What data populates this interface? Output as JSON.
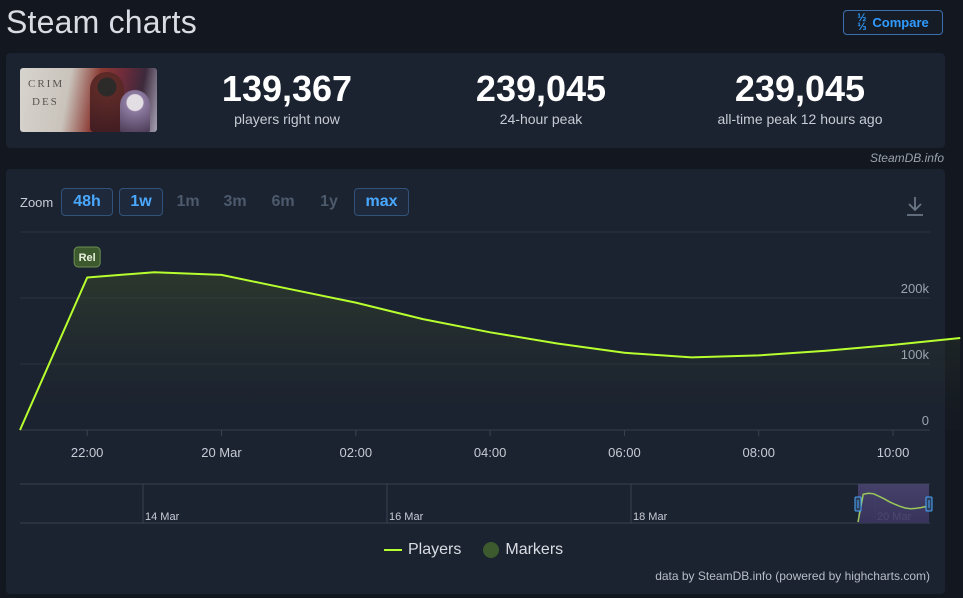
{
  "page": {
    "title": "Steam charts"
  },
  "compare": {
    "label": "Compare",
    "icon": "fraction-icon"
  },
  "game": {
    "title_line1": "CRIM",
    "title_line2": "DES"
  },
  "stats": [
    {
      "value": "139,367",
      "label": "players right now"
    },
    {
      "value": "239,045",
      "label": "24-hour peak"
    },
    {
      "value": "239,045",
      "label": "all-time peak 12 hours ago"
    }
  ],
  "credit_top": "SteamDB.info",
  "zoom": {
    "label": "Zoom",
    "buttons": [
      {
        "label": "48h",
        "state": "active"
      },
      {
        "label": "1w",
        "state": "active"
      },
      {
        "label": "1m",
        "state": "inactive"
      },
      {
        "label": "3m",
        "state": "inactive"
      },
      {
        "label": "6m",
        "state": "inactive"
      },
      {
        "label": "1y",
        "state": "inactive"
      },
      {
        "label": "max",
        "state": "active"
      }
    ]
  },
  "chart_data": {
    "type": "area",
    "x_ticks": [
      "22:00",
      "20 Mar",
      "02:00",
      "04:00",
      "06:00",
      "08:00",
      "10:00"
    ],
    "y_ticks": [
      "0",
      "100k",
      "200k"
    ],
    "ylim": [
      0,
      300000
    ],
    "series": [
      {
        "name": "Players",
        "color": "#b7ff2e",
        "points": [
          {
            "x": "21:00",
            "y": 0
          },
          {
            "x": "22:00",
            "y": 231000
          },
          {
            "x": "23:00",
            "y": 239045
          },
          {
            "x": "20 Mar",
            "y": 235000
          },
          {
            "x": "01:00",
            "y": 214000
          },
          {
            "x": "02:00",
            "y": 193000
          },
          {
            "x": "03:00",
            "y": 168000
          },
          {
            "x": "04:00",
            "y": 148000
          },
          {
            "x": "05:00",
            "y": 131000
          },
          {
            "x": "06:00",
            "y": 117000
          },
          {
            "x": "07:00",
            "y": 110000
          },
          {
            "x": "08:00",
            "y": 113000
          },
          {
            "x": "09:00",
            "y": 120000
          },
          {
            "x": "10:00",
            "y": 129000
          },
          {
            "x": "11:00",
            "y": 139367
          }
        ]
      }
    ],
    "markers": [
      {
        "x": "22:00",
        "label": "Rel",
        "color": "#3d5a2e"
      }
    ],
    "navigator_labels": [
      "14 Mar",
      "16 Mar",
      "18 Mar",
      "20 Mar"
    ],
    "grid": true,
    "legend": {
      "position": "bottom-center",
      "items": [
        "Players",
        "Markers"
      ]
    }
  },
  "credit_bottom": "data by SteamDB.info (powered by highcharts.com)"
}
